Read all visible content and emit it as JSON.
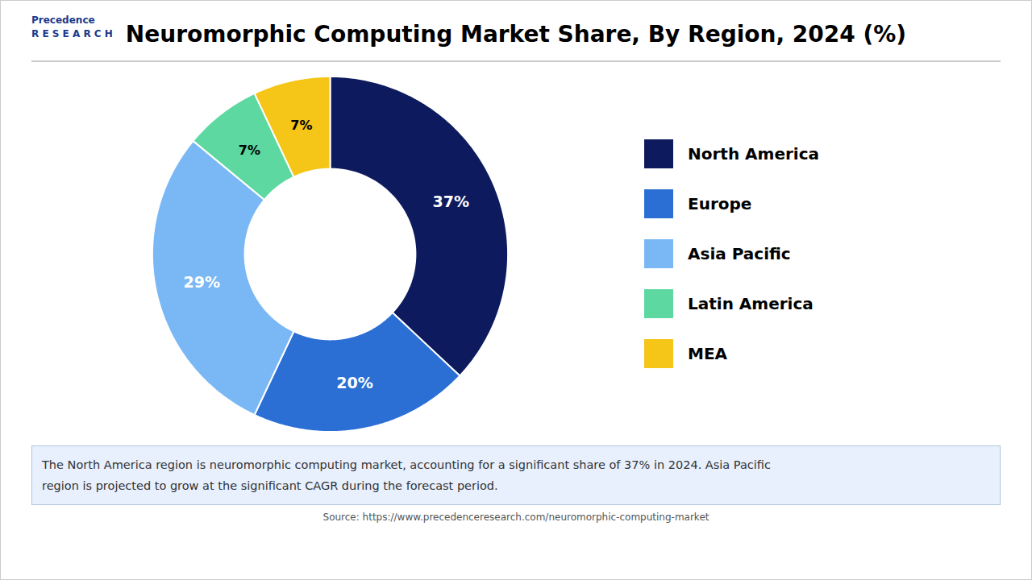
{
  "chart_data": {
    "type": "donut",
    "title": "Neuromorphic Computing Market Share, By Region, 2024 (%)",
    "categories": [
      "North America",
      "Europe",
      "Asia Pacific",
      "Latin America",
      "MEA"
    ],
    "values": [
      37,
      20,
      29,
      7,
      7
    ],
    "value_labels": [
      "37%",
      "20%",
      "29%",
      "7%",
      "7%"
    ],
    "colors": [
      "#0d1b5e",
      "#2b6fd4",
      "#7ab8f5",
      "#5dd8a0",
      "#f5c518"
    ],
    "data_labels": true,
    "legend": "right",
    "annotation": "The North America region is neuromorphic computing market, accounting for a significant share of 37% in 2024. Asia Pacific\nregion is projected to grow at the significant CAGR during the forecast period.",
    "source": "Source: https://www.precedenceresearch.com/neuromorphic-computing-market",
    "logo": "Precedence\nR E S E A R C H"
  }
}
